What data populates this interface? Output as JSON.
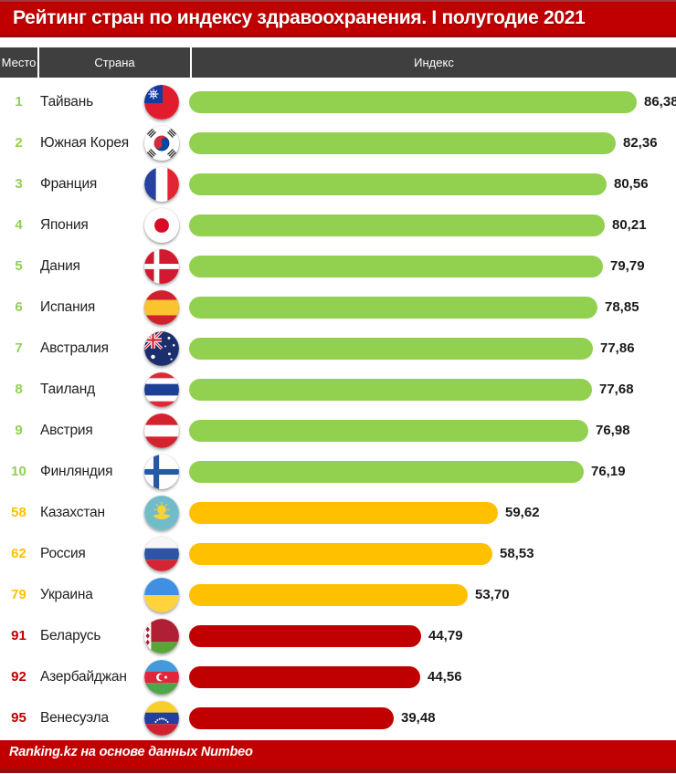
{
  "title": "Рейтинг стран по индексу здравоохранения. I полугодие 2021",
  "table_header": {
    "rank": "Место",
    "country": "Страна",
    "index": "Индекс"
  },
  "footer": "Ranking.kz на основе данных Numbeo",
  "colors": {
    "green": "#92D050",
    "yellow": "#FFC000",
    "red": "#C00000",
    "banner_bg": "#C00000",
    "header_bg": "#3F3F3F"
  },
  "chart_data": {
    "type": "bar",
    "orientation": "horizontal",
    "title": "Рейтинг стран по индексу здравоохранения. I полугодие 2021",
    "source": "Ranking.kz на основе данных Numbeo",
    "value_label": "Индекс",
    "scale_max": 86.38,
    "rows": [
      {
        "rank": "1",
        "country": "Тайвань",
        "value": 86.38,
        "label": "86,38",
        "tier": "green",
        "flag": "taiwan"
      },
      {
        "rank": "2",
        "country": "Южная Корея",
        "value": 82.36,
        "label": "82,36",
        "tier": "green",
        "flag": "southkorea"
      },
      {
        "rank": "3",
        "country": "Франция",
        "value": 80.56,
        "label": "80,56",
        "tier": "green",
        "flag": "france"
      },
      {
        "rank": "4",
        "country": "Япония",
        "value": 80.21,
        "label": "80,21",
        "tier": "green",
        "flag": "japan"
      },
      {
        "rank": "5",
        "country": "Дания",
        "value": 79.79,
        "label": "79,79",
        "tier": "green",
        "flag": "denmark"
      },
      {
        "rank": "6",
        "country": "Испания",
        "value": 78.85,
        "label": "78,85",
        "tier": "green",
        "flag": "spain"
      },
      {
        "rank": "7",
        "country": "Австралия",
        "value": 77.86,
        "label": "77,86",
        "tier": "green",
        "flag": "australia"
      },
      {
        "rank": "8",
        "country": "Таиланд",
        "value": 77.68,
        "label": "77,68",
        "tier": "green",
        "flag": "thailand"
      },
      {
        "rank": "9",
        "country": "Австрия",
        "value": 76.98,
        "label": "76,98",
        "tier": "green",
        "flag": "austria"
      },
      {
        "rank": "10",
        "country": "Финляндия",
        "value": 76.19,
        "label": "76,19",
        "tier": "green",
        "flag": "finland"
      },
      {
        "rank": "58",
        "country": "Казахстан",
        "value": 59.62,
        "label": "59,62",
        "tier": "yellow",
        "flag": "kazakhstan"
      },
      {
        "rank": "62",
        "country": "Россия",
        "value": 58.53,
        "label": "58,53",
        "tier": "yellow",
        "flag": "russia"
      },
      {
        "rank": "79",
        "country": "Украина",
        "value": 53.7,
        "label": "53,70",
        "tier": "yellow",
        "flag": "ukraine"
      },
      {
        "rank": "91",
        "country": "Беларусь",
        "value": 44.79,
        "label": "44,79",
        "tier": "red",
        "flag": "belarus"
      },
      {
        "rank": "92",
        "country": "Азербайджан",
        "value": 44.56,
        "label": "44,56",
        "tier": "red",
        "flag": "azerbaijan"
      },
      {
        "rank": "95",
        "country": "Венесуэла",
        "value": 39.48,
        "label": "39,48",
        "tier": "red",
        "flag": "venezuela"
      }
    ]
  }
}
